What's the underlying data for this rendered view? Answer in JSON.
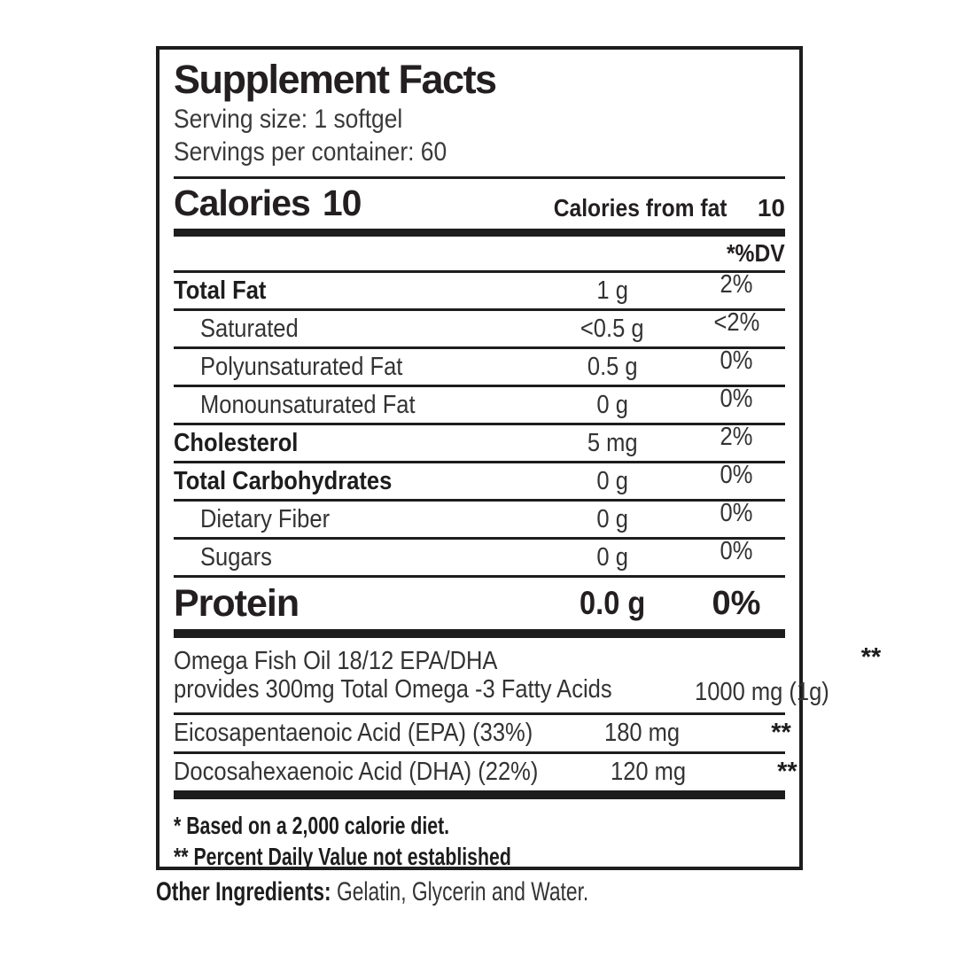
{
  "label": {
    "title": "Supplement Facts",
    "serving_size": "Serving size: 1 softgel",
    "servings_per_container": "Servings per container: 60",
    "calories_label": "Calories",
    "calories_value": "10",
    "calories_from_fat_label": "Calories from fat",
    "calories_from_fat_value": "10",
    "dv_header": "*%DV",
    "rows": [
      {
        "name": "Total Fat",
        "amount": "1 g",
        "dv": "2%"
      },
      {
        "name": "Saturated",
        "amount": "<0.5 g",
        "dv": "<2%"
      },
      {
        "name": "Polyunsaturated Fat",
        "amount": "0.5 g",
        "dv": "0%"
      },
      {
        "name": "Monounsaturated Fat",
        "amount": "0 g",
        "dv": "0%"
      },
      {
        "name": "Cholesterol",
        "amount": "5 mg",
        "dv": "2%"
      },
      {
        "name": "Total Carbohydrates",
        "amount": "0 g",
        "dv": "0%"
      },
      {
        "name": "Dietary Fiber",
        "amount": "0 g",
        "dv": "0%"
      },
      {
        "name": "Sugars",
        "amount": "0 g",
        "dv": "0%"
      }
    ],
    "protein": {
      "name": "Protein",
      "amount": "0.0 g",
      "dv": "0%"
    },
    "supplement_rows": [
      {
        "name_line1": "Omega Fish Oil 18/12 EPA/DHA",
        "name_line2": "provides 300mg Total Omega -3 Fatty Acids",
        "amount": "1000 mg (1g)",
        "dv": "**"
      },
      {
        "name_line1": "Eicosapentaenoic Acid (EPA) (33%)",
        "amount": "180 mg",
        "dv": "**"
      },
      {
        "name_line1": "Docosahexaenoic Acid (DHA) (22%)",
        "amount": "120 mg",
        "dv": "**"
      }
    ],
    "footnotes": [
      "* Based on a 2,000 calorie diet.",
      "** Percent Daily Value not established"
    ],
    "other_ingredients_label": "Other Ingredients:",
    "other_ingredients_text": "Gelatin, Glycerin and Water.",
    "colors": {
      "text": "#231f20",
      "rule": "#1d1d1d",
      "background": "#ffffff"
    }
  }
}
